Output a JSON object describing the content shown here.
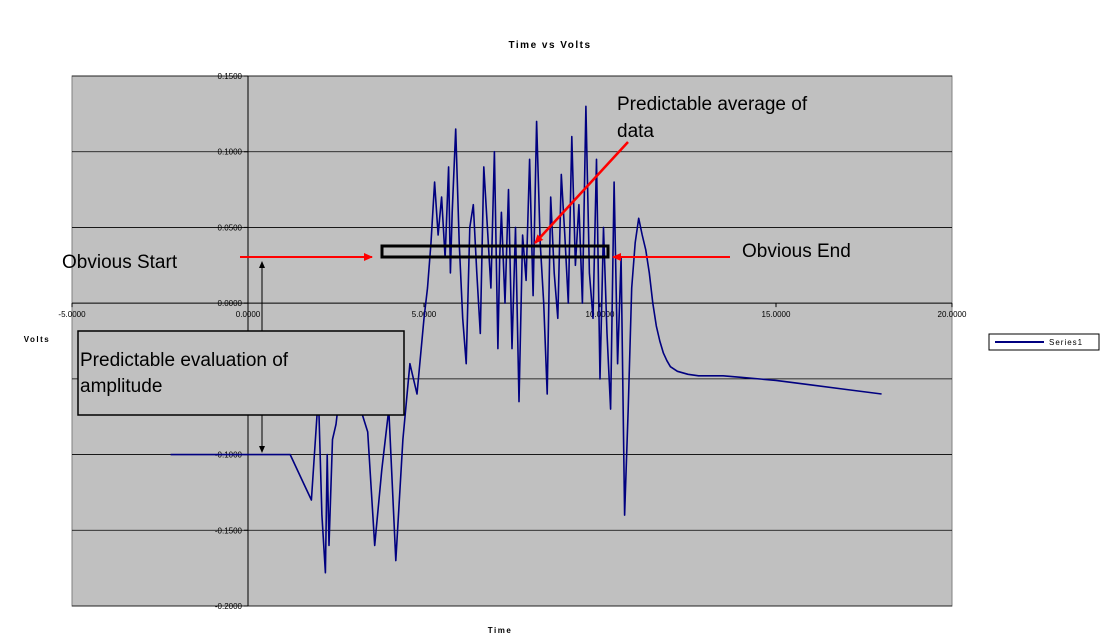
{
  "chart_data": {
    "type": "line",
    "title": "Time vs Volts",
    "xlabel": "Time",
    "ylabel": "Volts",
    "xlim": [
      -5,
      20
    ],
    "ylim": [
      -0.2,
      0.15
    ],
    "x_ticks": [
      -5,
      0,
      5,
      10,
      15,
      20
    ],
    "y_ticks": [
      -0.2,
      -0.15,
      -0.1,
      -0.05,
      0,
      0.05,
      0.1,
      0.15
    ],
    "x_tick_labels": [
      "-5.0000",
      "0.0000",
      "5.0000",
      "10.0000",
      "15.0000",
      "20.0000"
    ],
    "y_tick_labels": [
      "-0.2000",
      "-0.1500",
      "-0.1000",
      "-0.0500",
      "0.0000",
      "0.0500",
      "0.1000",
      "0.1500"
    ],
    "grid": true,
    "legend_position": "right",
    "colors": {
      "plot_area": "#c0c0c0",
      "series": "#000080",
      "annotation_arrow": "#ff0000"
    },
    "series": [
      {
        "name": "Series1",
        "x": [
          -2.2,
          -1.5,
          -0.5,
          0.5,
          1.2,
          1.6,
          1.8,
          2.0,
          2.1,
          2.2,
          2.25,
          2.3,
          2.4,
          2.5,
          2.6,
          2.7,
          2.8,
          3.0,
          3.2,
          3.4,
          3.6,
          3.8,
          4.0,
          4.2,
          4.4,
          4.6,
          4.8,
          5.0,
          5.1,
          5.2,
          5.3,
          5.4,
          5.5,
          5.6,
          5.7,
          5.75,
          5.8,
          5.9,
          6.0,
          6.1,
          6.2,
          6.3,
          6.4,
          6.5,
          6.6,
          6.7,
          6.8,
          6.9,
          7.0,
          7.1,
          7.15,
          7.2,
          7.3,
          7.4,
          7.5,
          7.6,
          7.7,
          7.8,
          7.9,
          8.0,
          8.1,
          8.2,
          8.3,
          8.4,
          8.5,
          8.6,
          8.7,
          8.8,
          8.9,
          9.0,
          9.1,
          9.2,
          9.3,
          9.4,
          9.5,
          9.6,
          9.7,
          9.8,
          9.9,
          10.0,
          10.1,
          10.2,
          10.3,
          10.4,
          10.5,
          10.6,
          10.7,
          10.8,
          10.9,
          11.0,
          11.1,
          11.2,
          11.3,
          11.4,
          11.5,
          11.6,
          11.7,
          11.8,
          11.9,
          12.0,
          12.2,
          12.5,
          12.8,
          13.1,
          13.5,
          14.0,
          15.0,
          16.0,
          17.0,
          18.0
        ],
        "y": [
          -0.1,
          -0.1,
          -0.1,
          -0.1,
          -0.1,
          -0.12,
          -0.13,
          -0.06,
          -0.14,
          -0.178,
          -0.1,
          -0.16,
          -0.09,
          -0.08,
          -0.06,
          -0.065,
          -0.055,
          -0.06,
          -0.07,
          -0.085,
          -0.16,
          -0.11,
          -0.07,
          -0.17,
          -0.09,
          -0.04,
          -0.06,
          -0.01,
          0.01,
          0.04,
          0.08,
          0.045,
          0.07,
          0.03,
          0.09,
          0.02,
          0.06,
          0.115,
          0.04,
          -0.01,
          -0.04,
          0.05,
          0.065,
          0.02,
          -0.02,
          0.09,
          0.05,
          0.01,
          0.1,
          -0.03,
          0.03,
          0.06,
          0.0,
          0.075,
          -0.03,
          0.05,
          -0.065,
          0.045,
          0.015,
          0.095,
          0.005,
          0.12,
          0.04,
          0.0,
          -0.06,
          0.07,
          0.02,
          -0.01,
          0.085,
          0.045,
          0.0,
          0.11,
          0.025,
          0.065,
          0.0,
          0.13,
          0.02,
          -0.01,
          0.095,
          -0.05,
          0.05,
          -0.02,
          -0.07,
          0.08,
          -0.04,
          0.03,
          -0.14,
          -0.07,
          0.01,
          0.04,
          0.056,
          0.045,
          0.035,
          0.02,
          0.0,
          -0.015,
          -0.025,
          -0.033,
          -0.038,
          -0.042,
          -0.045,
          -0.047,
          -0.048,
          -0.048,
          -0.048,
          -0.049,
          -0.051,
          -0.054,
          -0.057,
          -0.06
        ]
      }
    ],
    "annotations": {
      "average_label": "Predictable average of data",
      "start_label": "Obvious Start",
      "end_label": "Obvious End",
      "amplitude_label": "Predictable evaluation of amplitude"
    }
  }
}
